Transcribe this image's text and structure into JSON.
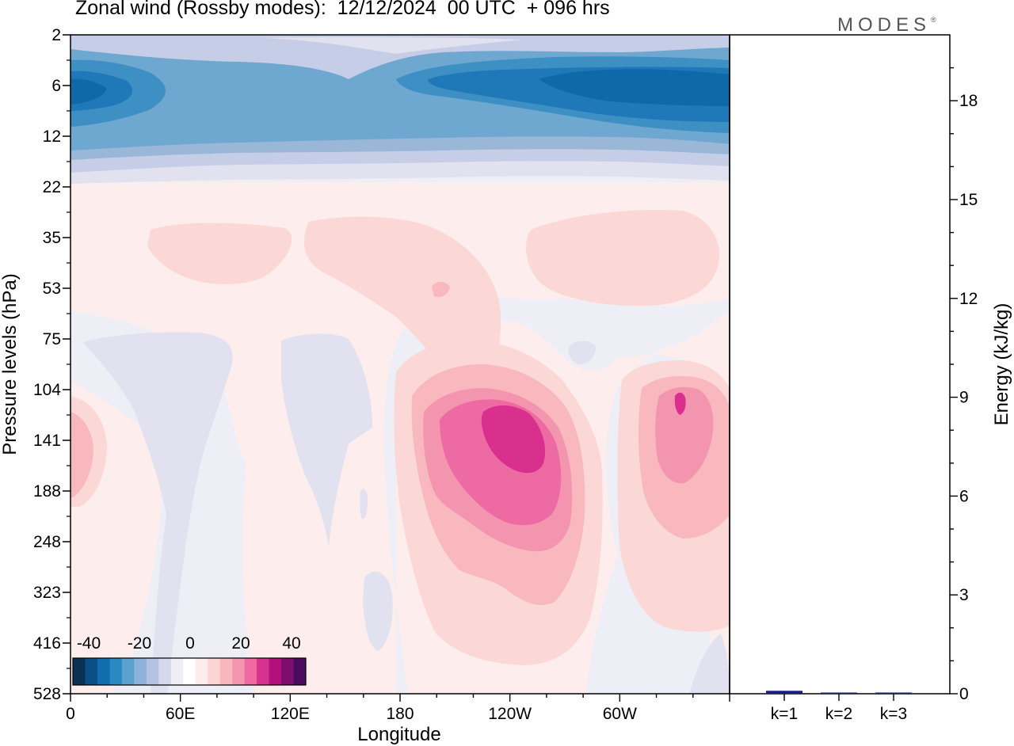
{
  "header": {
    "title": "Zonal wind (Rossby modes):  12/12/2024  00 UTC  + 096 hrs",
    "brand": "MODES",
    "brand_mark": "®"
  },
  "chart_data": [
    {
      "type": "heatmap",
      "title": "Zonal wind (Rossby modes):  12/12/2024  00 UTC  + 096 hrs",
      "xlabel": "Longitude",
      "ylabel": "Pressure levels (hPa)",
      "x_ticks": [
        "0",
        "60E",
        "120E",
        "180",
        "120W",
        "60W"
      ],
      "y_ticks": [
        "2",
        "6",
        "12",
        "22",
        "35",
        "53",
        "75",
        "104",
        "141",
        "188",
        "248",
        "323",
        "416",
        "528"
      ],
      "y_scale": "log-pressure",
      "colorbar": {
        "labels": [
          "-40",
          "-20",
          "0",
          "20",
          "40"
        ],
        "colors": [
          "#0b2f55",
          "#0a4f86",
          "#0f6fad",
          "#2b88c2",
          "#5ca2cf",
          "#8db4d8",
          "#b4c3e1",
          "#d6d9ec",
          "#eeeef6",
          "#ffffff",
          "#fdeceb",
          "#fbd4d4",
          "#f8b7bc",
          "#f497ae",
          "#ee6aa0",
          "#d8318e",
          "#b3107e",
          "#7b0e6e",
          "#4a0b5e"
        ]
      },
      "palette": {
        "neg1": "#eeeef6",
        "neg2": "#e1e1ef",
        "neg3": "#c6cde6",
        "neg4": "#9ab7d8",
        "neg5": "#6ea7d0",
        "neg6": "#3d8fc4",
        "neg7": "#1f78b8",
        "neg8": "#0d69a8",
        "pos0": "#fdeeed",
        "pos1": "#fbd7d6",
        "pos2": "#f8b8bd",
        "pos3": "#f495b0",
        "pos4": "#ee6aa2",
        "pos5": "#d9308e"
      }
    },
    {
      "type": "bar",
      "categories": [
        "k=1",
        "k=2",
        "k=3"
      ],
      "values": [
        0.09,
        0.02,
        0.02
      ],
      "ylabel": "Energy (kJ/kg)",
      "ylim": [
        0,
        20
      ],
      "y_ticks": [
        "0",
        "3",
        "6",
        "9",
        "12",
        "15",
        "18"
      ],
      "bar_color": "#1c1c8c"
    }
  ]
}
